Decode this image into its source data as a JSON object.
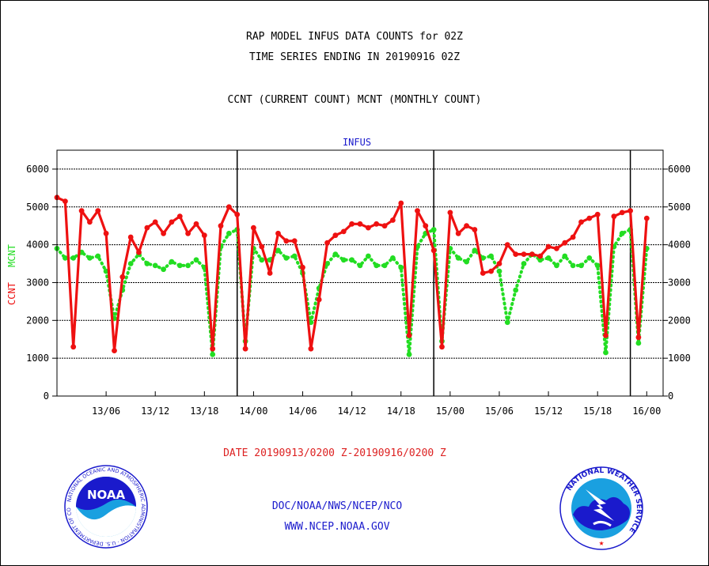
{
  "titles": {
    "line1": "RAP MODEL INFUS DATA COUNTS for 02Z",
    "line2": "TIME SERIES ENDING IN 20190916 02Z",
    "line3": "CCNT (CURRENT COUNT) MCNT (MONTHLY COUNT)"
  },
  "footer": {
    "date_range": "DATE 20190913/0200 Z-20190916/0200 Z",
    "org": "DOC/NOAA/NWS/NCEP/NCO",
    "url": "WWW.NCEP.NOAA.GOV",
    "noaa_logo_text": "NOAA",
    "noaa_ring_text": "NATIONAL OCEANIC AND ATMOSPHERIC ADMINISTRATION · U.S. DEPARTMENT OF COMMERCE",
    "nws_ring_text": "NATIONAL WEATHER SERVICE"
  },
  "colors": {
    "ccnt": "#ee1111",
    "mcnt": "#22dd22",
    "title_blue": "#1a1acc",
    "date_red": "#dd2222"
  },
  "chart_data": {
    "type": "line",
    "title": "INFUS",
    "ylabel_left": [
      "CCNT",
      "MCNT"
    ],
    "ylim": [
      0,
      6500
    ],
    "yticks": [
      0,
      1000,
      2000,
      3000,
      4000,
      5000,
      6000
    ],
    "y_tick_labels": [
      "0",
      "1000",
      "2000",
      "3000",
      "4000",
      "5000",
      "6000"
    ],
    "x_range_hours": [
      0,
      74
    ],
    "x_tick_hours": [
      6,
      12,
      18,
      24,
      30,
      36,
      42,
      48,
      54,
      60,
      66,
      72
    ],
    "x_tick_labels": [
      "13/06",
      "13/12",
      "13/18",
      "14/00",
      "14/06",
      "14/12",
      "14/18",
      "15/00",
      "15/06",
      "15/12",
      "15/18",
      "16/00"
    ],
    "day_boundaries_hours": [
      22,
      46,
      70
    ],
    "grid": true,
    "series": [
      {
        "name": "CCNT",
        "color": "#ee1111",
        "values": [
          5250,
          5150,
          1300,
          4900,
          4600,
          4900,
          4300,
          1200,
          3150,
          4200,
          3800,
          4450,
          4600,
          4300,
          4600,
          4750,
          4300,
          4550,
          4250,
          1250,
          4500,
          5000,
          4800,
          1250,
          4450,
          3950,
          3250,
          4300,
          4100,
          4100,
          3400,
          1250,
          2550,
          4050,
          4250,
          4350,
          4550,
          4550,
          4450,
          4550,
          4500,
          4650,
          5100,
          1600,
          4900,
          4500,
          3850,
          1300,
          4850,
          4300,
          4500,
          4400,
          3250,
          3300,
          3500,
          4000,
          3750,
          3750,
          3750,
          3700,
          3950,
          3900,
          4050,
          4200,
          4600,
          4700,
          4800,
          1600,
          4750,
          4850,
          4900,
          1550,
          4700
        ]
      },
      {
        "name": "MCNT",
        "color": "#22dd22",
        "values": [
          3900,
          3650,
          3650,
          3800,
          3650,
          3700,
          3300,
          2050,
          2800,
          3500,
          3750,
          3500,
          3450,
          3350,
          3550,
          3450,
          3450,
          3600,
          3400,
          1100,
          3950,
          4300,
          4400,
          1450,
          3900,
          3600,
          3600,
          3850,
          3650,
          3700,
          3250,
          1950,
          2850,
          3500,
          3750,
          3600,
          3600,
          3450,
          3700,
          3450,
          3450,
          3650,
          3400,
          1100,
          3950,
          4300,
          4400,
          1450,
          3900,
          3650,
          3550,
          3850,
          3650,
          3700,
          3300,
          1950,
          2800,
          3500,
          3750,
          3600,
          3650,
          3450,
          3700,
          3450,
          3450,
          3650,
          3450,
          1150,
          3950,
          4300,
          4400,
          1400,
          3900
        ]
      }
    ]
  }
}
